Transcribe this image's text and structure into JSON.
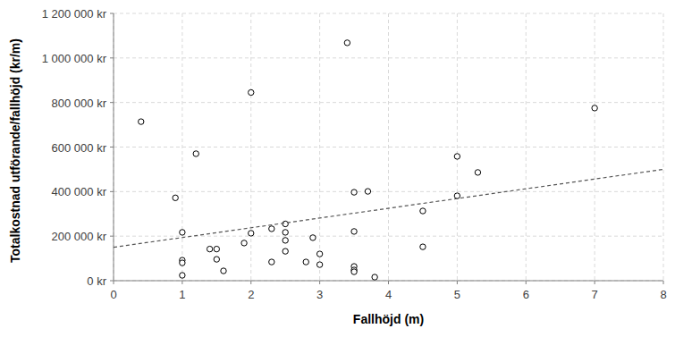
{
  "chart_data": {
    "type": "scatter",
    "x_label": "Fallhöjd (m)",
    "y_label": "Totalkostnad utförande/fallhöjd (kr/m)",
    "xlim": [
      0,
      8
    ],
    "ylim": [
      0,
      1200000
    ],
    "xticks": [
      0,
      1,
      2,
      3,
      4,
      5,
      6,
      7,
      8
    ],
    "yticks": [
      {
        "value": 0,
        "label": "0 kr"
      },
      {
        "value": 200000,
        "label": "200 000 kr"
      },
      {
        "value": 400000,
        "label": "400 000 kr"
      },
      {
        "value": 600000,
        "label": "600 000 kr"
      },
      {
        "value": 800000,
        "label": "800 000 kr"
      },
      {
        "value": 1000000,
        "label": "1 000 000 kr"
      },
      {
        "value": 1200000,
        "label": "1 200 000 kr"
      }
    ],
    "grid": true,
    "series": [
      {
        "type": "scatter",
        "marker": "circle",
        "color": "#000000",
        "x": [
          0.4,
          0.9,
          1.0,
          1.0,
          1.0,
          1.0,
          1.2,
          1.4,
          1.5,
          1.5,
          1.6,
          1.9,
          2.0,
          2.0,
          2.3,
          2.3,
          2.5,
          2.5,
          2.5,
          2.5,
          2.8,
          2.9,
          3.0,
          3.0,
          3.4,
          3.5,
          3.5,
          3.5,
          3.5,
          3.5,
          3.7,
          3.8,
          4.5,
          4.5,
          5.0,
          5.0,
          5.3,
          7.0
        ],
        "values": [
          714000,
          372000,
          217000,
          92000,
          80000,
          24000,
          570000,
          142000,
          142000,
          96000,
          44000,
          169000,
          845000,
          213000,
          233000,
          84000,
          255000,
          217000,
          181000,
          132000,
          84000,
          193000,
          120000,
          72000,
          1068000,
          397000,
          221000,
          64000,
          48000,
          40000,
          401000,
          16000,
          313000,
          152000,
          558000,
          381000,
          486000,
          775000
        ]
      },
      {
        "type": "line",
        "line_style": "dashed",
        "color": "#555555",
        "x": [
          0,
          8
        ],
        "values": [
          150000,
          500000
        ]
      }
    ]
  }
}
